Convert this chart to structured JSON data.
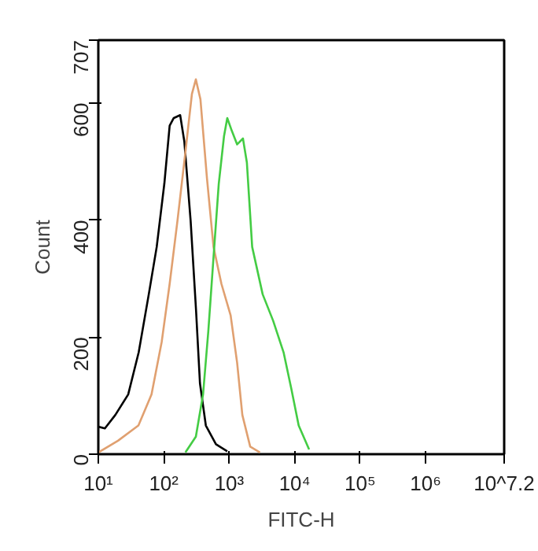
{
  "chart_data": {
    "type": "line",
    "xlabel": "FITC-H",
    "ylabel": "Count",
    "log": "x",
    "grid": false,
    "xlim": [
      10,
      15848932
    ],
    "ylim": [
      0,
      707
    ],
    "xticks": [
      {
        "value": 10,
        "label": "10¹"
      },
      {
        "value": 100,
        "label": "10²"
      },
      {
        "value": 1000,
        "label": "10³"
      },
      {
        "value": 10000,
        "label": "10⁴"
      },
      {
        "value": 100000,
        "label": "10⁵"
      },
      {
        "value": 1000000,
        "label": "10⁶"
      },
      {
        "value": 15848932,
        "label": "10^7.2"
      }
    ],
    "yticks": [
      0,
      200,
      400,
      600,
      707
    ],
    "series": [
      {
        "color": "#000000",
        "x": [
          10,
          12.6,
          18.2,
          28.6,
          41.4,
          59,
          78,
          102,
          123,
          142,
          178,
          206,
          257,
          311,
          357,
          439,
          627,
          933
        ],
        "values": [
          47,
          44,
          67,
          102,
          174,
          273,
          354,
          462,
          561,
          574,
          579,
          534,
          399,
          246,
          121,
          49,
          17,
          5
        ]
      },
      {
        "color": "#e0a070",
        "x": [
          10,
          20,
          41,
          65,
          93,
          123,
          162,
          214,
          269,
          309,
          363,
          457,
          575,
          759,
          1050,
          1320,
          1585,
          2090,
          2950
        ],
        "values": [
          3,
          23,
          49,
          102,
          192,
          291,
          399,
          516,
          615,
          640,
          606,
          471,
          354,
          291,
          237,
          156,
          67,
          13,
          3
        ]
      },
      {
        "color": "#44cc44",
        "x": [
          214,
          309,
          398,
          479,
          575,
          692,
          832,
          933,
          1096,
          1320,
          1620,
          1860,
          2240,
          3240,
          4680,
          6760,
          8910,
          11500,
          16600
        ],
        "values": [
          3,
          30,
          102,
          210,
          336,
          462,
          543,
          574,
          552,
          529,
          539,
          498,
          354,
          273,
          228,
          174,
          111,
          49,
          8
        ]
      }
    ]
  }
}
